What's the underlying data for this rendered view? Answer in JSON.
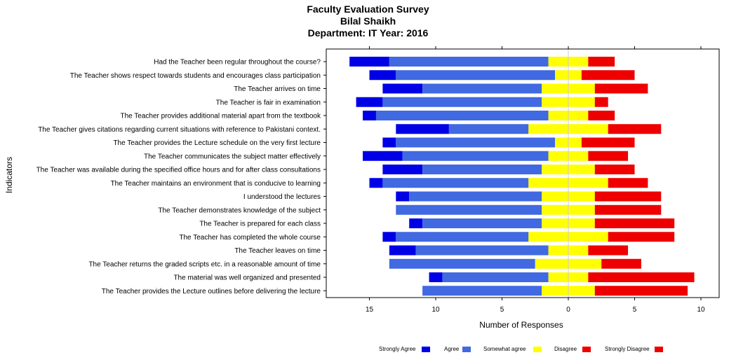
{
  "titles": {
    "line1": "Faculty Evaluation Survey",
    "line2": "Bilal Shaikh",
    "line3": "Department: IT Year: 2016"
  },
  "legend": [
    {
      "label": "Strongly Agree",
      "color": "#0000e6"
    },
    {
      "label": "Agree",
      "color": "#4169e1"
    },
    {
      "label": "Somewhat agree",
      "color": "#ffff00"
    },
    {
      "label": "Disagree",
      "color": "#ee0000"
    },
    {
      "label": "Strongly Disagree",
      "color": "#ee0000"
    }
  ],
  "chart_data": {
    "type": "bar",
    "orientation": "horizontal-diverging-stacked",
    "title": "Faculty Evaluation Survey\nBilal Shaikh\nDepartment: IT Year: 2016",
    "xlabel": "Number of Responses",
    "ylabel": "Indicators",
    "xlim": [
      -18,
      11.5
    ],
    "xticks": [
      -15,
      -10,
      -5,
      0,
      5,
      10
    ],
    "xtick_labels": [
      "15",
      "10",
      "5",
      "0",
      "5",
      "10"
    ],
    "grid": false,
    "legend_position": "bottom",
    "categories": [
      "Had the Teacher been regular throughout the course?",
      "The Teacher shows respect towards students and encourages class participation",
      "The Teacher arrives on time",
      "The Teacher is fair in examination",
      "The Teacher provides additional material apart from the textbook",
      "The Teacher gives citations regarding current situations with reference to Pakistani context.",
      "The Teacher provides the Lecture schedule on the very first lecture",
      "The Teacher communicates the subject matter effectively",
      "The Teacher was available during the specified office hours and for after class consultations",
      "The Teacher maintains an environment that is conducive to learning",
      "I understood the lectures",
      "The Teacher demonstrates knowledge of the subject",
      "The Teacher is prepared for each class",
      "The Teacher has completed the whole course",
      "The Teacher leaves on time",
      "The Teacher returns the graded scripts etc. in  a reasonable amount of time",
      "The material was well organized and presented",
      "The Teacher provides the Lecture outlines before delivering the lecture"
    ],
    "series": [
      {
        "name": "Strongly Agree",
        "color": "#0000e6",
        "values": [
          3,
          2,
          3,
          2,
          1,
          4,
          1,
          3,
          3,
          1,
          1,
          0,
          1,
          1,
          2,
          0,
          1,
          0
        ]
      },
      {
        "name": "Agree",
        "color": "#4169e1",
        "values": [
          12,
          12,
          9,
          12,
          13,
          6,
          12,
          11,
          9,
          11,
          10,
          11,
          9,
          10,
          10,
          11,
          8,
          9
        ]
      },
      {
        "name": "Somewhat agree",
        "color": "#ffff00",
        "values": [
          3,
          2,
          4,
          4,
          3,
          6,
          2,
          3,
          4,
          6,
          4,
          4,
          4,
          6,
          3,
          5,
          3,
          4
        ]
      },
      {
        "name": "Disagree",
        "color": "#ee0000",
        "values": [
          2,
          4,
          4,
          1,
          2,
          4,
          4,
          3,
          3,
          3,
          5,
          5,
          6,
          5,
          3,
          3,
          8,
          7
        ]
      }
    ]
  }
}
